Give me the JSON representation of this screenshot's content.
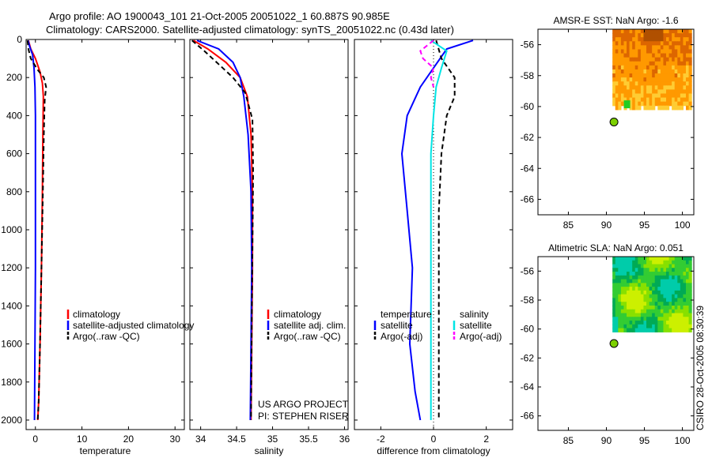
{
  "title_line1": "Argo profile: AO 1900043_101 21-Oct-2005 20051022_1 60.887S 90.985E",
  "title_line2": "Climatology: CARS2000. Satellite-adjusted climatology: synTS_20051022.nc (0.43d later)",
  "footer_vertical": "CSIRO 28-Oct-2005 08:30:39",
  "credit_line1": "US ARGO PROJECT",
  "credit_line2": "PI: STEPHEN RISER",
  "colors": {
    "climatology": "#ff0000",
    "satellite": "#0000ff",
    "argo": "#000000",
    "salinity_satellite": "#00e5e5",
    "salinity_argo": "#ff00ff",
    "float_marker": "#7cd000"
  },
  "chart_data": [
    {
      "type": "line",
      "id": "temperature",
      "xlabel": "temperature",
      "ylabel": "",
      "xlim": [
        -2,
        32
      ],
      "ylim": [
        2050,
        0
      ],
      "xticks": [
        0,
        10,
        20,
        30
      ],
      "yticks": [
        0,
        200,
        400,
        600,
        800,
        1000,
        1200,
        1400,
        1600,
        1800,
        2000
      ],
      "legend": [
        "climatology",
        "satellite-adjusted climatology",
        "Argo(..raw -QC)"
      ],
      "series": [
        {
          "name": "climatology",
          "color": "#ff0000",
          "dash": "",
          "x": [
            -1.5,
            -1.0,
            0.0,
            1.0,
            1.5,
            1.7,
            1.6,
            1.5,
            1.3,
            1.0,
            0.7,
            0.5
          ],
          "y": [
            5,
            50,
            100,
            170,
            230,
            300,
            500,
            800,
            1200,
            1600,
            1900,
            2000
          ]
        },
        {
          "name": "satellite-adjusted climatology",
          "color": "#0000ff",
          "dash": "",
          "x": [
            -1.6,
            -1.2,
            -0.6,
            -0.3,
            -0.1,
            0.0,
            0.0,
            0.0,
            -0.1,
            -0.2
          ],
          "y": [
            5,
            40,
            80,
            150,
            250,
            400,
            800,
            1200,
            1600,
            2000
          ]
        },
        {
          "name": "Argo(..raw -QC)",
          "color": "#000000",
          "dash": "6,4",
          "x": [
            -1.7,
            -1.5,
            -1.0,
            0.5,
            1.8,
            2.3,
            2.0,
            1.8,
            1.6,
            1.3,
            1.0,
            0.7,
            0.5
          ],
          "y": [
            5,
            50,
            100,
            160,
            200,
            250,
            320,
            500,
            800,
            1200,
            1600,
            1900,
            2000
          ]
        }
      ]
    },
    {
      "type": "line",
      "id": "salinity",
      "xlabel": "salinity",
      "ylabel": "",
      "xlim": [
        33.85,
        36.05
      ],
      "ylim": [
        2050,
        0
      ],
      "xticks": [
        34,
        34.5,
        35,
        35.5,
        36
      ],
      "xticklabels": [
        "34",
        "34.5",
        "35",
        "35.5",
        "36"
      ],
      "legend": [
        "climatology",
        "satellite adj. clim.",
        "Argo(..raw -QC)"
      ],
      "series": [
        {
          "name": "climatology",
          "color": "#ff0000",
          "dash": "",
          "x": [
            33.9,
            34.1,
            34.35,
            34.55,
            34.65,
            34.7,
            34.72,
            34.72,
            34.71,
            34.7
          ],
          "y": [
            5,
            50,
            120,
            200,
            300,
            500,
            800,
            1200,
            1600,
            2000
          ]
        },
        {
          "name": "satellite adj. clim.",
          "color": "#0000ff",
          "dash": "",
          "x": [
            33.95,
            34.25,
            34.45,
            34.55,
            34.6,
            34.66,
            34.7,
            34.71,
            34.7,
            34.69
          ],
          "y": [
            5,
            50,
            120,
            200,
            300,
            500,
            800,
            1200,
            1600,
            2000
          ]
        },
        {
          "name": "Argo(..raw -QC)",
          "color": "#000000",
          "dash": "6,4",
          "x": [
            33.88,
            34.05,
            34.25,
            34.45,
            34.62,
            34.72,
            34.73,
            34.72,
            34.71,
            34.7
          ],
          "y": [
            5,
            60,
            130,
            200,
            280,
            420,
            700,
            1100,
            1500,
            2000
          ]
        }
      ]
    },
    {
      "type": "line",
      "id": "difference",
      "xlabel": "difference from climatology",
      "ylabel": "",
      "xlim": [
        -3,
        3
      ],
      "ylim": [
        2050,
        0
      ],
      "xticks": [
        -2,
        0,
        2
      ],
      "legend_groups": [
        {
          "heading": "temperature",
          "items": [
            "satellite",
            "Argo(-adj)"
          ]
        },
        {
          "heading": "salinity",
          "items": [
            "satellite",
            "Argo(-adj)"
          ]
        }
      ],
      "zero_line": 0,
      "series": [
        {
          "name": "temperature satellite",
          "color": "#0000ff",
          "dash": "",
          "x": [
            1.5,
            0.5,
            0.0,
            -0.5,
            -1.0,
            -1.2,
            -1.0,
            -0.8,
            -0.9,
            -0.7,
            -0.5
          ],
          "y": [
            5,
            50,
            150,
            250,
            400,
            600,
            900,
            1200,
            1600,
            1850,
            2000
          ]
        },
        {
          "name": "temperature Argo(-adj)",
          "color": "#000000",
          "dash": "6,4",
          "x": [
            0.1,
            0.3,
            0.8,
            0.8,
            0.5,
            0.3,
            0.2,
            0.2,
            0.2,
            0.2,
            0.2
          ],
          "y": [
            5,
            100,
            200,
            300,
            400,
            600,
            900,
            1200,
            1600,
            1900,
            2000
          ]
        },
        {
          "name": "salinity satellite",
          "color": "#00e5e5",
          "dash": "",
          "x": [
            -0.1,
            0.5,
            0.3,
            0.1,
            0.0,
            -0.1,
            -0.1,
            -0.1,
            -0.1,
            -0.1
          ],
          "y": [
            5,
            60,
            150,
            250,
            400,
            600,
            900,
            1300,
            1700,
            2000
          ]
        },
        {
          "name": "salinity Argo(-adj)",
          "color": "#ff00ff",
          "dash": "6,4",
          "x": [
            0.0,
            -0.5,
            -0.4,
            0.0,
            -0.1,
            0.0
          ],
          "y": [
            5,
            60,
            100,
            150,
            200,
            250
          ]
        }
      ]
    },
    {
      "type": "heatmap",
      "id": "sst-map",
      "title": "AMSR-E SST: NaN Argo: -1.6",
      "xlim": [
        81,
        101.5
      ],
      "ylim": [
        -67,
        -55
      ],
      "xticks": [
        85,
        90,
        95,
        100
      ],
      "yticks": [
        -56,
        -58,
        -60,
        -62,
        -64,
        -66
      ],
      "float_position": {
        "lon": 91,
        "lat": -61
      },
      "field_bounds": {
        "lon": [
          90.8,
          101.2
        ],
        "lat": [
          -60.2,
          -55
        ]
      },
      "field_palette": [
        "#ffcc33",
        "#ff9900",
        "#dd6600",
        "#b05000"
      ]
    },
    {
      "type": "heatmap",
      "id": "sla-map",
      "title": "Altimetric SLA: NaN Argo: 0.051",
      "xlim": [
        81,
        101.5
      ],
      "ylim": [
        -67,
        -55
      ],
      "xticks": [
        85,
        90,
        95,
        100
      ],
      "yticks": [
        -56,
        -58,
        -60,
        -62,
        -64,
        -66
      ],
      "float_position": {
        "lon": 91,
        "lat": -61
      },
      "field_bounds": {
        "lon": [
          90.8,
          101.2
        ],
        "lat": [
          -60.2,
          -55
        ]
      },
      "field_palette": [
        "#ccf000",
        "#88e000",
        "#33cc33",
        "#00aa55",
        "#00ccaa"
      ]
    }
  ]
}
